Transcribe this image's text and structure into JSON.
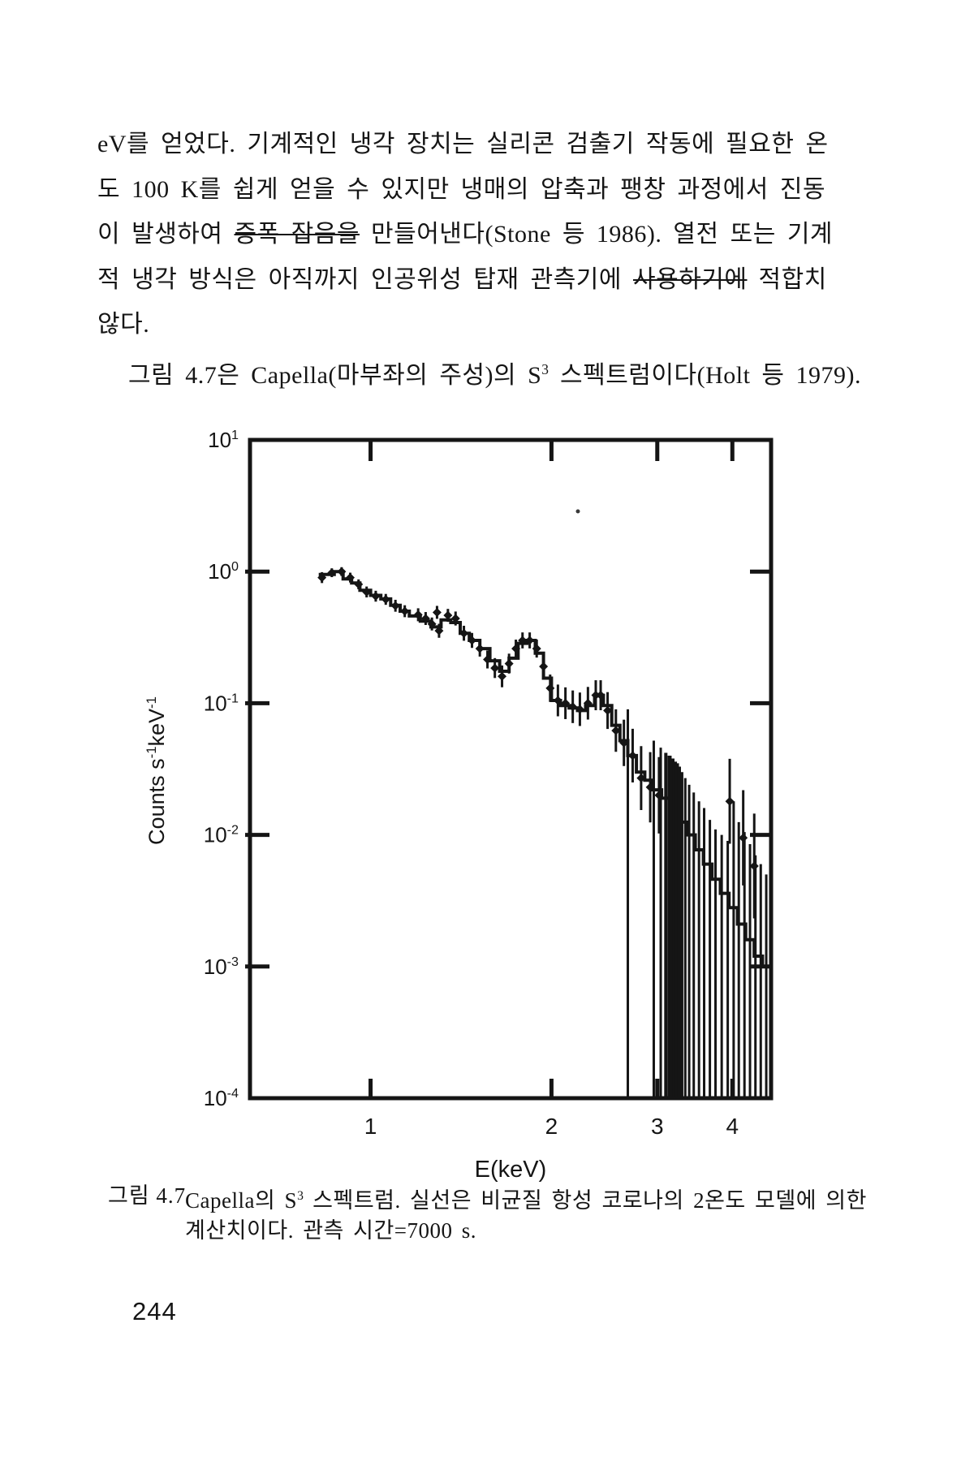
{
  "page_number": "244",
  "paragraph": {
    "lines": [
      {
        "segments": [
          {
            "t": "eV를 얻었다. 기계적인 냉각 장치는 실리콘 검출기 작동에 필요한 온"
          }
        ]
      },
      {
        "segments": [
          {
            "t": "도 100 K를 쉽게 얻을 수 있지만 냉매의 압축과 팽창 과정에서 진동"
          }
        ]
      },
      {
        "segments": [
          {
            "t": "이 발생하여 "
          },
          {
            "t": "증폭 잡음을",
            "struck": true
          },
          {
            "t": " 만들어낸다(Stone 등 1986). 열전 또는 기계"
          }
        ]
      },
      {
        "segments": [
          {
            "t": "적 냉각 방식은 아직까지 인공위성 탑재 관측기에 "
          },
          {
            "t": "사용하기에",
            "struck": true
          },
          {
            "t": " 적합치"
          }
        ]
      },
      {
        "segments": [
          {
            "t": "않다."
          }
        ]
      },
      {
        "indent": true,
        "segments": [
          {
            "t": "그림 4.7은 Capella(마부좌의 주성)의 S"
          },
          {
            "t": "3",
            "sup": true
          },
          {
            "t": " 스펙트럼이다(Holt 등 1979)."
          }
        ]
      }
    ]
  },
  "caption": {
    "label": "그림 4.7",
    "lines": [
      {
        "segments": [
          {
            "t": "Capella의 S"
          },
          {
            "t": "3",
            "sup": true
          },
          {
            "t": " 스펙트럼. 실선은 비균질 항성 코로나의 2온도 모델에 의한"
          }
        ]
      },
      {
        "segments": [
          {
            "t": "계산치이다. 관측 시간=7000 s."
          }
        ]
      }
    ]
  },
  "chart_data": {
    "type": "line",
    "title": "",
    "xlabel": "E(keV)",
    "ylabel_parts": [
      {
        "t": "Counts s"
      },
      {
        "t": "-1",
        "sup": true
      },
      {
        "t": "keV"
      },
      {
        "t": "-1",
        "sup": true
      }
    ],
    "x_scale": "log",
    "y_scale": "log",
    "xlim": [
      0.63,
      4.64
    ],
    "ylim": [
      0.0001,
      10
    ],
    "x_ticks": [
      1,
      2,
      3,
      4
    ],
    "x_tick_labels": [
      "1",
      "2",
      "3",
      "4"
    ],
    "y_tick_exponents": [
      1,
      0,
      -1,
      -2,
      -3,
      -4
    ],
    "grid": false,
    "legend": "none",
    "ink_color": "#151515",
    "model_steps": [
      [
        0.82,
        0.95
      ],
      [
        0.87,
        1.0
      ],
      [
        0.9,
        0.88
      ],
      [
        0.93,
        0.82
      ],
      [
        0.96,
        0.72
      ],
      [
        1.0,
        0.66
      ],
      [
        1.04,
        0.62
      ],
      [
        1.08,
        0.555
      ],
      [
        1.12,
        0.5
      ],
      [
        1.16,
        0.46
      ],
      [
        1.21,
        0.42
      ],
      [
        1.26,
        0.38
      ],
      [
        1.31,
        0.43
      ],
      [
        1.36,
        0.41
      ],
      [
        1.41,
        0.34
      ],
      [
        1.46,
        0.3
      ],
      [
        1.52,
        0.26
      ],
      [
        1.58,
        0.21
      ],
      [
        1.64,
        0.175
      ],
      [
        1.7,
        0.22
      ],
      [
        1.76,
        0.285
      ],
      [
        1.82,
        0.3
      ],
      [
        1.88,
        0.24
      ],
      [
        1.94,
        0.155
      ],
      [
        2.0,
        0.105
      ],
      [
        2.07,
        0.096
      ],
      [
        2.14,
        0.092
      ],
      [
        2.21,
        0.088
      ],
      [
        2.28,
        0.096
      ],
      [
        2.36,
        0.115
      ],
      [
        2.44,
        0.096
      ],
      [
        2.52,
        0.068
      ],
      [
        2.6,
        0.052
      ],
      [
        2.68,
        0.04
      ],
      [
        2.77,
        0.03
      ],
      [
        2.86,
        0.026
      ],
      [
        2.95,
        0.022
      ],
      [
        3.05,
        0.019
      ],
      [
        3.15,
        0.0155
      ],
      [
        3.25,
        0.0125
      ],
      [
        3.36,
        0.01
      ],
      [
        3.47,
        0.0077
      ],
      [
        3.58,
        0.006
      ],
      [
        3.7,
        0.0046
      ],
      [
        3.82,
        0.0036
      ],
      [
        3.95,
        0.0028
      ],
      [
        4.08,
        0.0021
      ],
      [
        4.21,
        0.0016
      ],
      [
        4.35,
        0.0012
      ],
      [
        4.49,
        0.001
      ],
      [
        4.64,
        0.001
      ]
    ],
    "points": [
      [
        0.83,
        0.9,
        1.1
      ],
      [
        0.862,
        0.98,
        1.08
      ],
      [
        0.895,
        1.0,
        1.08
      ],
      [
        0.925,
        0.9,
        1.09
      ],
      [
        0.955,
        0.8,
        1.09
      ],
      [
        0.985,
        0.7,
        1.1
      ],
      [
        1.02,
        0.65,
        1.1
      ],
      [
        1.06,
        0.615,
        1.1
      ],
      [
        1.1,
        0.55,
        1.11
      ],
      [
        1.14,
        0.5,
        1.11
      ],
      [
        1.2,
        0.47,
        1.12
      ],
      [
        1.235,
        0.44,
        1.12
      ],
      [
        1.265,
        0.4,
        1.12
      ],
      [
        1.29,
        0.49,
        1.12
      ],
      [
        1.3,
        0.355,
        1.13
      ],
      [
        1.345,
        0.465,
        1.12
      ],
      [
        1.385,
        0.44,
        1.13
      ],
      [
        1.43,
        0.34,
        1.14
      ],
      [
        1.475,
        0.3,
        1.14
      ],
      [
        1.52,
        0.26,
        1.15
      ],
      [
        1.565,
        0.215,
        1.17
      ],
      [
        1.61,
        0.185,
        1.19
      ],
      [
        1.655,
        0.16,
        1.21
      ],
      [
        1.7,
        0.2,
        1.19
      ],
      [
        1.745,
        0.26,
        1.17
      ],
      [
        1.79,
        0.3,
        1.15
      ],
      [
        1.84,
        0.3,
        1.15
      ],
      [
        1.89,
        0.26,
        1.17
      ],
      [
        1.94,
        0.19,
        1.21
      ],
      [
        1.99,
        0.13,
        1.27
      ],
      [
        2.05,
        0.105,
        1.32
      ],
      [
        2.11,
        0.1,
        1.32
      ],
      [
        2.17,
        0.094,
        1.33
      ],
      [
        2.23,
        0.09,
        1.34
      ],
      [
        2.3,
        0.1,
        1.33
      ],
      [
        2.37,
        0.115,
        1.3
      ],
      [
        2.415,
        0.115,
        1.3
      ],
      [
        2.48,
        0.088,
        1.38
      ],
      [
        2.56,
        0.062,
        1.45
      ],
      [
        2.64,
        0.05,
        1.5
      ],
      [
        2.73,
        0.04,
        1.6
      ],
      [
        2.82,
        0.027,
        1.75
      ],
      [
        2.92,
        0.023,
        1.85
      ],
      [
        3.02,
        0.02,
        1.95
      ],
      [
        3.96,
        0.018,
        2.1
      ],
      [
        4.17,
        0.0095,
        2.3
      ],
      [
        4.35,
        0.0058,
        2.5
      ]
    ],
    "dropout_bars": [
      [
        2.68,
        0.09,
        3
      ],
      [
        2.96,
        0.052,
        3
      ],
      [
        3.04,
        0.046,
        3
      ],
      [
        3.1,
        0.042,
        4
      ],
      [
        3.145,
        0.04,
        5
      ],
      [
        3.175,
        0.038,
        6
      ],
      [
        3.205,
        0.036,
        6
      ],
      [
        3.235,
        0.035,
        5
      ],
      [
        3.265,
        0.033,
        4
      ],
      [
        3.3,
        0.03,
        3
      ],
      [
        3.34,
        0.027,
        3
      ],
      [
        3.39,
        0.024,
        3
      ],
      [
        3.45,
        0.021,
        3
      ],
      [
        3.52,
        0.018,
        3
      ],
      [
        3.59,
        0.016,
        3
      ],
      [
        3.67,
        0.013,
        3
      ],
      [
        3.75,
        0.011,
        3
      ],
      [
        3.84,
        0.01,
        3
      ],
      [
        3.93,
        0.009,
        3
      ],
      [
        4.02,
        0.018,
        3
      ],
      [
        4.1,
        0.0125,
        3
      ],
      [
        4.19,
        0.0105,
        3
      ],
      [
        4.28,
        0.0085,
        3
      ],
      [
        4.37,
        0.007,
        3
      ],
      [
        4.46,
        0.006,
        3
      ],
      [
        4.555,
        0.005,
        3
      ]
    ],
    "specks": [
      [
        562,
        130
      ]
    ]
  }
}
